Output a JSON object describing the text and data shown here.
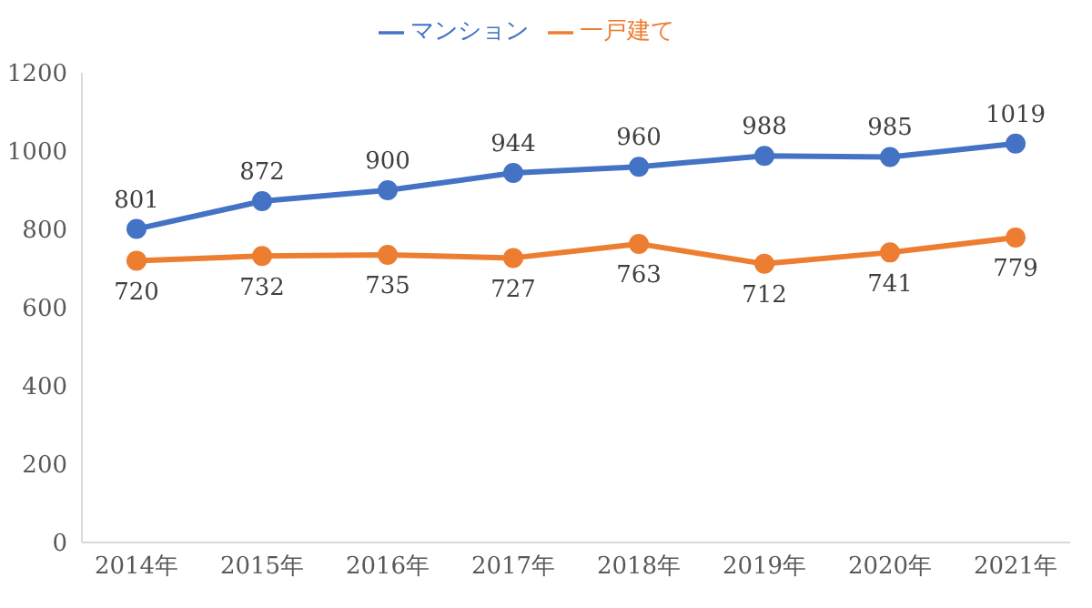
{
  "chart_data": {
    "type": "line",
    "categories": [
      "2014年",
      "2015年",
      "2016年",
      "2017年",
      "2018年",
      "2019年",
      "2020年",
      "2021年"
    ],
    "series": [
      {
        "name": "マンション",
        "color": "#4472c4",
        "values": [
          801,
          872,
          900,
          944,
          960,
          988,
          985,
          1019
        ]
      },
      {
        "name": "一戸建て",
        "color": "#ed7d31",
        "values": [
          720,
          732,
          735,
          727,
          763,
          712,
          741,
          779
        ]
      }
    ],
    "ylim": [
      0,
      1200
    ],
    "yticks": [
      0,
      200,
      400,
      600,
      800,
      1000,
      1200
    ],
    "grid": false,
    "legend": "top",
    "marker": "circle",
    "line_style": "solid",
    "data_labels": true
  }
}
